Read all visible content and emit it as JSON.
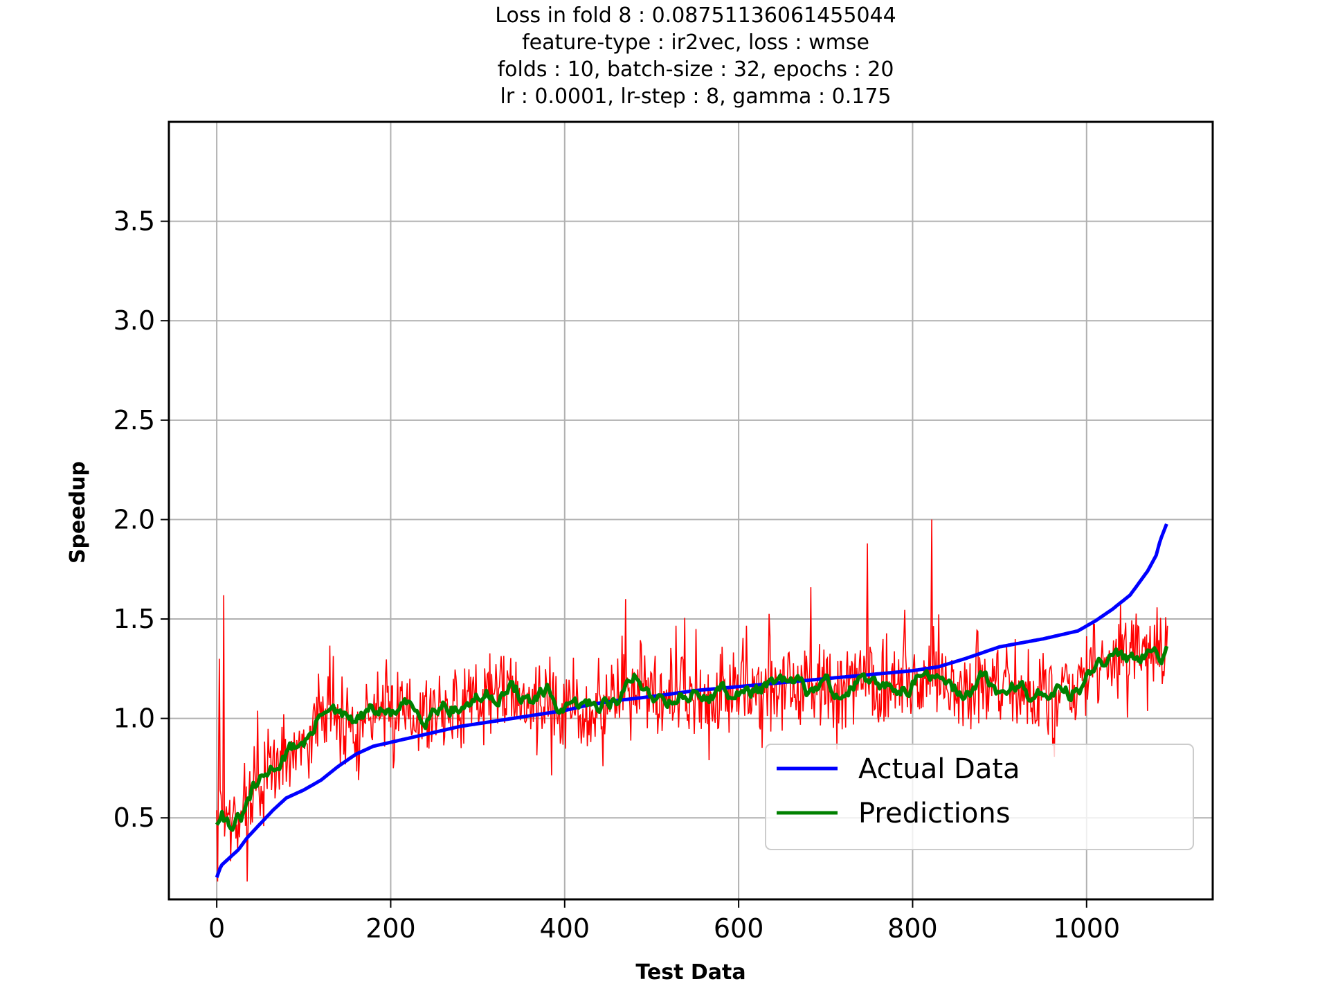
{
  "chart_data": {
    "type": "line",
    "title_lines": [
      "Loss in fold 8 : 0.08751136061455044",
      "feature-type : ir2vec, loss : wmse",
      "folds : 10, batch-size : 32, epochs : 20",
      "lr : 0.0001, lr-step : 8, gamma : 0.175"
    ],
    "xlabel": "Test Data",
    "ylabel": "Speedup",
    "xlim": [
      -55,
      1145
    ],
    "ylim": [
      0.09,
      4.0
    ],
    "xticks": [
      0,
      200,
      400,
      600,
      800,
      1000
    ],
    "xtick_labels": [
      "0",
      "200",
      "400",
      "600",
      "800",
      "1000"
    ],
    "yticks": [
      0.5,
      1.0,
      1.5,
      2.0,
      2.5,
      3.0,
      3.5
    ],
    "ytick_labels": [
      "0.5",
      "1.0",
      "1.5",
      "2.0",
      "2.5",
      "3.0",
      "3.5"
    ],
    "grid": true,
    "legend_position": "lower-right",
    "n_points": 1094,
    "series": [
      {
        "name": "Actual Data",
        "color": "#0000ff",
        "in_legend": true,
        "x": [
          0,
          5,
          15,
          25,
          35,
          50,
          65,
          80,
          100,
          120,
          140,
          160,
          180,
          200,
          220,
          250,
          280,
          310,
          340,
          370,
          400,
          430,
          460,
          500,
          550,
          600,
          650,
          700,
          750,
          800,
          830,
          860,
          900,
          950,
          990,
          1010,
          1030,
          1050,
          1060,
          1070,
          1080,
          1085,
          1094
        ],
        "values": [
          0.2,
          0.26,
          0.3,
          0.34,
          0.4,
          0.47,
          0.54,
          0.6,
          0.64,
          0.69,
          0.76,
          0.82,
          0.86,
          0.88,
          0.9,
          0.93,
          0.96,
          0.98,
          1.0,
          1.02,
          1.04,
          1.07,
          1.09,
          1.11,
          1.14,
          1.16,
          1.18,
          1.2,
          1.22,
          1.24,
          1.26,
          1.3,
          1.36,
          1.4,
          1.44,
          1.49,
          1.55,
          1.62,
          1.68,
          1.74,
          1.82,
          1.9,
          2.0
        ]
      },
      {
        "name": "Predictions",
        "color": "#008000",
        "in_legend": true,
        "x": [
          0,
          5,
          10,
          20,
          30,
          40,
          55,
          70,
          90,
          110,
          125,
          140,
          160,
          180,
          200,
          220,
          240,
          260,
          280,
          300,
          320,
          340,
          360,
          380,
          400,
          420,
          440,
          460,
          480,
          500,
          520,
          540,
          560,
          580,
          600,
          620,
          640,
          660,
          680,
          700,
          720,
          740,
          760,
          780,
          800,
          820,
          840,
          860,
          880,
          900,
          920,
          940,
          960,
          980,
          1000,
          1020,
          1040,
          1060,
          1075,
          1085,
          1094
        ],
        "values": [
          0.48,
          0.56,
          0.5,
          0.46,
          0.5,
          0.62,
          0.7,
          0.78,
          0.86,
          0.92,
          1.08,
          1.0,
          0.98,
          1.04,
          1.02,
          1.06,
          1.02,
          1.08,
          1.05,
          1.1,
          1.12,
          1.15,
          1.08,
          1.12,
          1.03,
          1.06,
          1.08,
          1.1,
          1.2,
          1.12,
          1.1,
          1.13,
          1.1,
          1.14,
          1.12,
          1.15,
          1.16,
          1.18,
          1.14,
          1.17,
          1.12,
          1.2,
          1.14,
          1.15,
          1.18,
          1.22,
          1.15,
          1.12,
          1.2,
          1.12,
          1.18,
          1.1,
          1.16,
          1.12,
          1.2,
          1.28,
          1.3,
          1.32,
          1.38,
          1.32,
          1.42
        ]
      },
      {
        "name": "Raw predictions",
        "color": "#ff0000",
        "in_legend": false,
        "x": [
          0,
          5,
          10,
          20,
          30,
          40,
          55,
          70,
          90,
          110,
          125,
          140,
          160,
          180,
          200,
          220,
          240,
          260,
          280,
          300,
          320,
          340,
          360,
          380,
          400,
          420,
          440,
          460,
          480,
          500,
          520,
          540,
          560,
          580,
          600,
          620,
          640,
          660,
          680,
          700,
          720,
          740,
          760,
          780,
          800,
          820,
          840,
          860,
          880,
          900,
          920,
          940,
          960,
          980,
          1000,
          1020,
          1040,
          1060,
          1075,
          1085,
          1094
        ],
        "values": [
          0.48,
          0.56,
          0.5,
          0.46,
          0.5,
          0.62,
          0.7,
          0.78,
          0.86,
          0.92,
          1.08,
          1.0,
          0.98,
          1.04,
          1.02,
          1.06,
          1.02,
          1.08,
          1.05,
          1.1,
          1.12,
          1.15,
          1.08,
          1.12,
          1.03,
          1.06,
          1.08,
          1.1,
          1.2,
          1.12,
          1.1,
          1.13,
          1.1,
          1.14,
          1.12,
          1.15,
          1.16,
          1.18,
          1.14,
          1.17,
          1.12,
          1.2,
          1.14,
          1.15,
          1.18,
          1.22,
          1.15,
          1.12,
          1.2,
          1.12,
          1.18,
          1.1,
          1.16,
          1.12,
          1.2,
          1.28,
          1.3,
          1.32,
          1.38,
          1.32,
          1.42
        ],
        "noise_amplitude": 0.3,
        "noise_seed": 7,
        "spike_x": [
          3,
          8,
          822,
          748,
          683,
          470
        ],
        "spike_values": [
          1.3,
          1.62,
          2.0,
          1.88,
          1.66,
          1.6
        ]
      }
    ]
  }
}
